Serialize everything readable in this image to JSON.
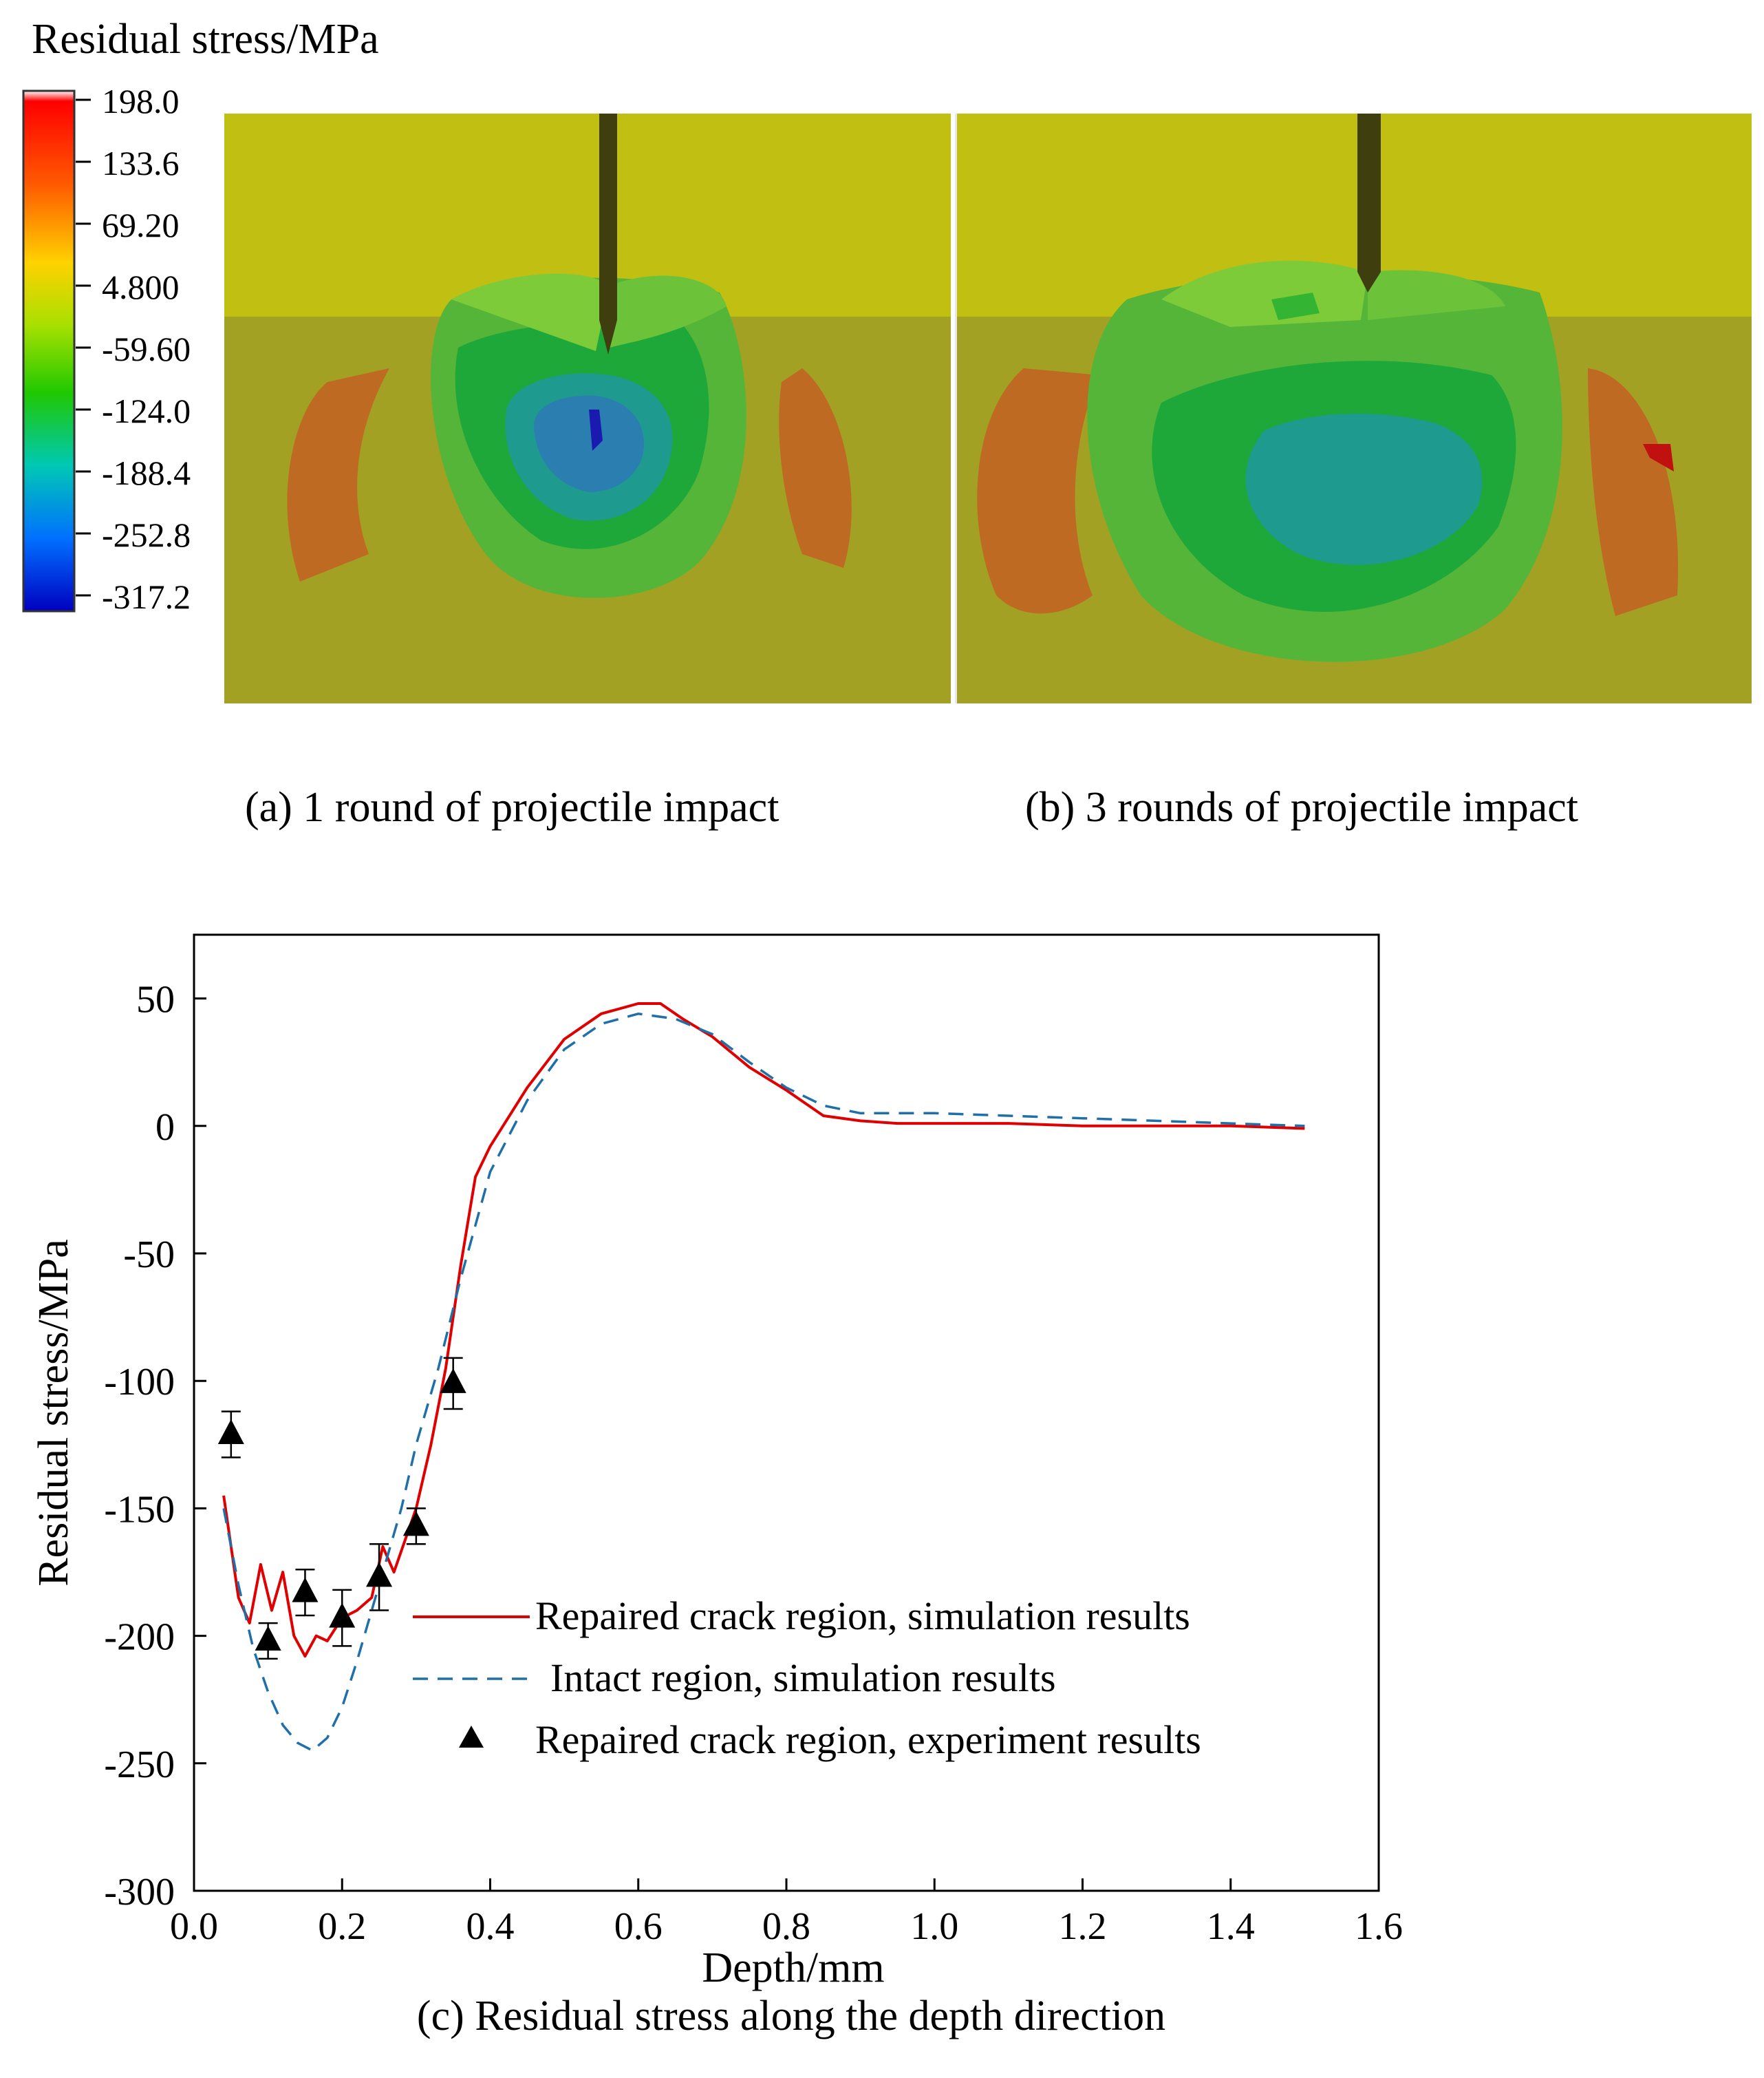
{
  "colorbar": {
    "title": "Residual stress/MPa",
    "labels": [
      "198.0",
      "133.6",
      "69.20",
      "4.800",
      "-59.60",
      "-124.0",
      "-188.4",
      "-252.8",
      "-317.2"
    ],
    "colors": [
      "#ffffff",
      "#ff0000",
      "#ff6a00",
      "#ffd400",
      "#b8e000",
      "#2ed000",
      "#00c8a0",
      "#00a0ff",
      "#0030e0",
      "#0000c0"
    ]
  },
  "panels": {
    "a": {
      "caption": "(a) 1 round of projectile impact"
    },
    "b": {
      "caption": "(b) 3 rounds of projectile impact"
    }
  },
  "chart_data": {
    "type": "line",
    "title": "(c) Residual stress along the depth direction",
    "xlabel": "Depth/mm",
    "ylabel": "Residual stress/MPa",
    "xlim": [
      0.0,
      1.6
    ],
    "ylim": [
      -300,
      75
    ],
    "xticks": [
      0.0,
      0.2,
      0.4,
      0.6,
      0.8,
      1.0,
      1.2,
      1.4,
      1.6
    ],
    "xtick_labels": [
      "0.0",
      "0.2",
      "0.4",
      "0.6",
      "0.8",
      "1.0",
      "1.2",
      "1.4",
      "1.6"
    ],
    "yticks": [
      50,
      0,
      -50,
      -100,
      -150,
      -200,
      -250,
      -300
    ],
    "ytick_labels": [
      "50",
      "0",
      "-50",
      "-100",
      "-150",
      "-200",
      "-250",
      "-300"
    ],
    "legend_position": "lower-right",
    "series": [
      {
        "name": "Repaired crack region, simulation results",
        "style": "solid",
        "color": "#e00000",
        "x": [
          0.04,
          0.06,
          0.075,
          0.09,
          0.105,
          0.12,
          0.135,
          0.15,
          0.165,
          0.18,
          0.2,
          0.22,
          0.24,
          0.255,
          0.27,
          0.3,
          0.32,
          0.34,
          0.36,
          0.38,
          0.4,
          0.45,
          0.5,
          0.55,
          0.6,
          0.63,
          0.66,
          0.7,
          0.75,
          0.8,
          0.85,
          0.9,
          0.95,
          1.0,
          1.1,
          1.2,
          1.3,
          1.4,
          1.5
        ],
        "y": [
          -145,
          -185,
          -195,
          -172,
          -190,
          -175,
          -200,
          -208,
          -200,
          -202,
          -193,
          -190,
          -185,
          -165,
          -175,
          -150,
          -125,
          -95,
          -55,
          -20,
          -8,
          15,
          34,
          44,
          48,
          48,
          42,
          35,
          23,
          14,
          4,
          2,
          1,
          1,
          1,
          0,
          0,
          0,
          -1
        ]
      },
      {
        "name": "Intact region, simulation results",
        "style": "dashed",
        "color": "#1f6fa8",
        "x": [
          0.04,
          0.06,
          0.08,
          0.1,
          0.12,
          0.14,
          0.16,
          0.18,
          0.2,
          0.22,
          0.25,
          0.28,
          0.3,
          0.33,
          0.36,
          0.4,
          0.45,
          0.5,
          0.55,
          0.6,
          0.65,
          0.7,
          0.75,
          0.8,
          0.85,
          0.9,
          1.0,
          1.1,
          1.2,
          1.3,
          1.4,
          1.5
        ],
        "y": [
          -150,
          -180,
          -205,
          -222,
          -235,
          -242,
          -245,
          -240,
          -228,
          -210,
          -180,
          -150,
          -125,
          -95,
          -60,
          -18,
          10,
          30,
          40,
          44,
          42,
          36,
          25,
          15,
          8,
          5,
          5,
          4,
          3,
          2,
          1,
          0
        ]
      },
      {
        "name": "Repaired crack region, experiment results",
        "style": "marker",
        "color": "#000000",
        "x": [
          0.05,
          0.1,
          0.15,
          0.2,
          0.25,
          0.3,
          0.35
        ],
        "y": [
          -121,
          -202,
          -183,
          -193,
          -177,
          -157,
          -101
        ],
        "err": [
          9,
          7,
          9,
          11,
          13,
          7,
          10
        ]
      }
    ]
  }
}
